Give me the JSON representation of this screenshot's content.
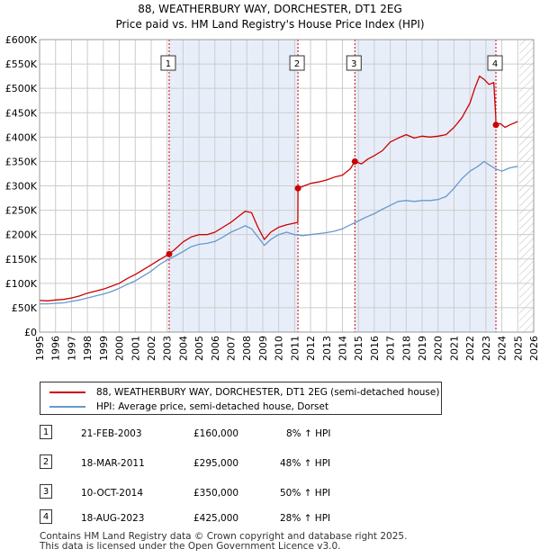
{
  "title": {
    "line1": "88, WEATHERBURY WAY, DORCHESTER, DT1 2EG",
    "line2": "Price paid vs. HM Land Registry's House Price Index (HPI)"
  },
  "colors": {
    "red": "#cc0000",
    "blue": "#6699cc",
    "shade": "#e8eef9",
    "grid": "#cccccc"
  },
  "chart_data": {
    "type": "line",
    "title": "88, WEATHERBURY WAY, DORCHESTER, DT1 2EG — Price paid vs. HM Land Registry's House Price Index (HPI)",
    "xlim": [
      1995,
      2026
    ],
    "ylim": [
      0,
      600000
    ],
    "x_ticks": [
      1995,
      1996,
      1997,
      1998,
      1999,
      2000,
      2001,
      2002,
      2003,
      2004,
      2005,
      2006,
      2007,
      2008,
      2009,
      2010,
      2011,
      2012,
      2013,
      2014,
      2015,
      2016,
      2017,
      2018,
      2019,
      2020,
      2021,
      2022,
      2023,
      2024,
      2025,
      2026
    ],
    "y_ticks": [
      {
        "value": 0,
        "label": "£0"
      },
      {
        "value": 50000,
        "label": "£50K"
      },
      {
        "value": 100000,
        "label": "£100K"
      },
      {
        "value": 150000,
        "label": "£150K"
      },
      {
        "value": 200000,
        "label": "£200K"
      },
      {
        "value": 250000,
        "label": "£250K"
      },
      {
        "value": 300000,
        "label": "£300K"
      },
      {
        "value": 350000,
        "label": "£350K"
      },
      {
        "value": 400000,
        "label": "£400K"
      },
      {
        "value": 450000,
        "label": "£450K"
      },
      {
        "value": 500000,
        "label": "£500K"
      },
      {
        "value": 550000,
        "label": "£550K"
      },
      {
        "value": 600000,
        "label": "£600K"
      }
    ],
    "shaded_ranges": [
      [
        2003.13,
        2011.21
      ],
      [
        2014.78,
        2023.63
      ]
    ],
    "future_hatch_from": 2025.1,
    "series": [
      {
        "name": "88, WEATHERBURY WAY, DORCHESTER, DT1 2EG (semi-detached house)",
        "color": "#cc0000",
        "x": [
          1995,
          1995.5,
          1996,
          1996.5,
          1997,
          1997.5,
          1998,
          1998.5,
          1999,
          1999.5,
          2000,
          2000.5,
          2001,
          2001.5,
          2002,
          2002.5,
          2003.13,
          2003.5,
          2004,
          2004.5,
          2005,
          2005.5,
          2006,
          2006.5,
          2007,
          2007.5,
          2007.9,
          2008.3,
          2008.7,
          2009.1,
          2009.5,
          2010,
          2010.5,
          2011.2,
          2011.21,
          2011.6,
          2012,
          2012.5,
          2013,
          2013.5,
          2014,
          2014.5,
          2014.78,
          2015.2,
          2015.6,
          2016,
          2016.5,
          2017,
          2017.5,
          2018,
          2018.5,
          2019,
          2019.5,
          2020,
          2020.5,
          2021,
          2021.5,
          2022,
          2022.3,
          2022.6,
          2022.9,
          2023.2,
          2023.5,
          2023.62,
          2023.63,
          2023.9,
          2024.2,
          2024.5,
          2025
        ],
        "values": [
          65000,
          64000,
          66000,
          67000,
          70000,
          74000,
          80000,
          84000,
          88000,
          94000,
          100000,
          110000,
          118000,
          128000,
          138000,
          148000,
          160000,
          170000,
          185000,
          195000,
          200000,
          200000,
          205000,
          215000,
          225000,
          238000,
          248000,
          245000,
          215000,
          190000,
          205000,
          215000,
          220000,
          225000,
          295000,
          300000,
          305000,
          308000,
          312000,
          318000,
          322000,
          335000,
          350000,
          345000,
          355000,
          362000,
          372000,
          390000,
          398000,
          405000,
          398000,
          402000,
          400000,
          402000,
          405000,
          420000,
          440000,
          470000,
          500000,
          525000,
          518000,
          508000,
          512000,
          440000,
          425000,
          428000,
          420000,
          425000,
          432000
        ]
      },
      {
        "name": "HPI: Average price, semi-detached house, Dorset",
        "color": "#6699cc",
        "x": [
          1995,
          1995.5,
          1996,
          1996.5,
          1997,
          1997.5,
          1998,
          1998.5,
          1999,
          1999.5,
          2000,
          2000.5,
          2001,
          2001.5,
          2002,
          2002.5,
          2003,
          2003.5,
          2004,
          2004.5,
          2005,
          2005.5,
          2006,
          2006.5,
          2007,
          2007.5,
          2007.9,
          2008.3,
          2008.7,
          2009.1,
          2009.5,
          2010,
          2010.5,
          2011,
          2011.5,
          2012,
          2012.5,
          2013,
          2013.5,
          2014,
          2014.5,
          2015,
          2015.5,
          2016,
          2016.5,
          2017,
          2017.5,
          2018,
          2018.5,
          2019,
          2019.5,
          2020,
          2020.5,
          2021,
          2021.5,
          2022,
          2022.5,
          2022.9,
          2023.2,
          2023.6,
          2024,
          2024.5,
          2025
        ],
        "values": [
          58000,
          58000,
          59000,
          60000,
          63000,
          66000,
          70000,
          74000,
          78000,
          83000,
          90000,
          98000,
          105000,
          115000,
          125000,
          138000,
          148000,
          156000,
          165000,
          175000,
          180000,
          182000,
          186000,
          195000,
          205000,
          212000,
          218000,
          212000,
          195000,
          178000,
          190000,
          200000,
          205000,
          200000,
          198000,
          200000,
          202000,
          204000,
          207000,
          212000,
          220000,
          228000,
          236000,
          243000,
          252000,
          260000,
          268000,
          270000,
          268000,
          270000,
          270000,
          272000,
          278000,
          295000,
          315000,
          330000,
          340000,
          350000,
          343000,
          335000,
          330000,
          337000,
          340000
        ]
      }
    ],
    "sales": [
      {
        "n": "1",
        "x": 2003.13,
        "value": 160000
      },
      {
        "n": "2",
        "x": 2011.21,
        "value": 295000
      },
      {
        "n": "3",
        "x": 2014.78,
        "value": 350000
      },
      {
        "n": "4",
        "x": 2023.63,
        "value": 425000
      }
    ]
  },
  "legend": {
    "red_label": "88, WEATHERBURY WAY, DORCHESTER, DT1 2EG (semi-detached house)",
    "blue_label": "HPI: Average price, semi-detached house, Dorset"
  },
  "sales_table": [
    {
      "n": "1",
      "date": "21-FEB-2003",
      "price": "£160,000",
      "hpi": "8% ↑ HPI"
    },
    {
      "n": "2",
      "date": "18-MAR-2011",
      "price": "£295,000",
      "hpi": "48% ↑ HPI"
    },
    {
      "n": "3",
      "date": "10-OCT-2014",
      "price": "£350,000",
      "hpi": "50% ↑ HPI"
    },
    {
      "n": "4",
      "date": "18-AUG-2023",
      "price": "£425,000",
      "hpi": "28% ↑ HPI"
    }
  ],
  "footer": {
    "line1": "Contains HM Land Registry data © Crown copyright and database right 2025.",
    "line2": "This data is licensed under the Open Government Licence v3.0."
  }
}
